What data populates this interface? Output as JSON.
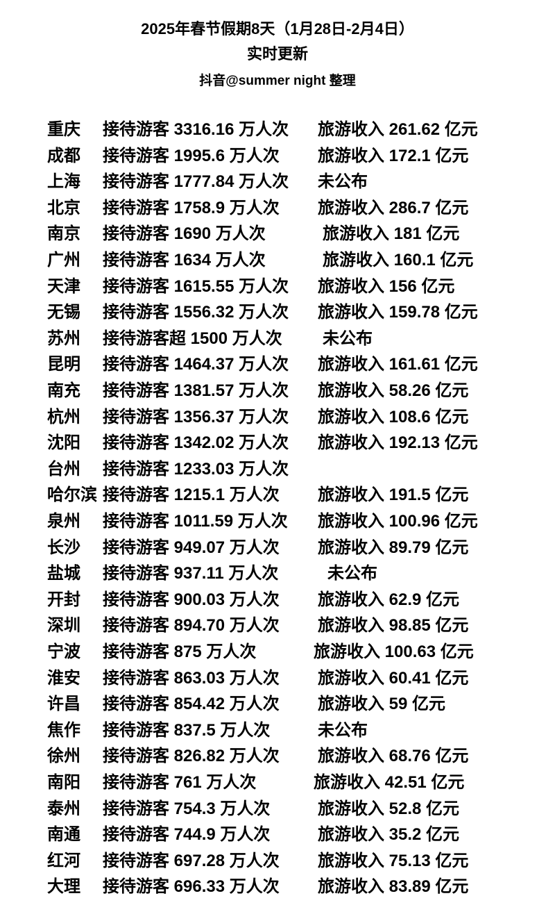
{
  "header": {
    "title": "2025年春节假期8天（1月28日-2月4日）",
    "subtitle": "实时更新",
    "credit": "抖音@summer  night 整理"
  },
  "rows": [
    {
      "city": "重庆",
      "visitors": "接待游客 3316.16 万人次",
      "revenue": "旅游收入 261.62 亿元"
    },
    {
      "city": "成都",
      "visitors": "接待游客 1995.6 万人次",
      "revenue": "旅游收入 172.1 亿元"
    },
    {
      "city": "上海",
      "visitors": "接待游客 1777.84 万人次",
      "revenue": "未公布"
    },
    {
      "city": "北京",
      "visitors": "接待游客 1758.9 万人次",
      "revenue": "旅游收入 286.7 亿元"
    },
    {
      "city": "南京",
      "visitors": "接待游客 1690 万人次",
      "revenue": "旅游收入 181 亿元"
    },
    {
      "city": "广州",
      "visitors": "接待游客 1634 万人次",
      "revenue": "旅游收入 160.1 亿元"
    },
    {
      "city": "天津",
      "visitors": "接待游客 1615.55 万人次",
      "revenue": "旅游收入 156 亿元"
    },
    {
      "city": "无锡",
      "visitors": "接待游客 1556.32 万人次",
      "revenue": "旅游收入 159.78 亿元"
    },
    {
      "city": "苏州",
      "visitors": "接待游客超 1500 万人次",
      "revenue": "未公布"
    },
    {
      "city": "昆明",
      "visitors": "接待游客 1464.37 万人次",
      "revenue": "旅游收入 161.61 亿元"
    },
    {
      "city": "南充",
      "visitors": "接待游客 1381.57 万人次",
      "revenue": "旅游收入 58.26 亿元"
    },
    {
      "city": "杭州",
      "visitors": "接待游客 1356.37 万人次",
      "revenue": "旅游收入 108.6 亿元"
    },
    {
      "city": "沈阳",
      "visitors": "接待游客 1342.02 万人次",
      "revenue": "旅游收入 192.13 亿元"
    },
    {
      "city": "台州",
      "visitors": "接待游客 1233.03 万人次",
      "revenue": ""
    },
    {
      "city": "哈尔滨",
      "visitors": "接待游客 1215.1 万人次",
      "revenue": "旅游收入 191.5 亿元"
    },
    {
      "city": "泉州",
      "visitors": "接待游客 1011.59 万人次",
      "revenue": "旅游收入 100.96 亿元"
    },
    {
      "city": "长沙",
      "visitors": "接待游客 949.07 万人次",
      "revenue": "旅游收入 89.79 亿元"
    },
    {
      "city": "盐城",
      "visitors": "接待游客 937.11 万人次",
      "revenue": "未公布"
    },
    {
      "city": "开封",
      "visitors": "接待游客 900.03 万人次",
      "revenue": "旅游收入 62.9 亿元"
    },
    {
      "city": "深圳",
      "visitors": "接待游客 894.70 万人次",
      "revenue": "旅游收入 98.85 亿元"
    },
    {
      "city": "宁波",
      "visitors": "接待游客 875 万人次",
      "revenue": "旅游收入 100.63 亿元"
    },
    {
      "city": "淮安",
      "visitors": "接待游客 863.03 万人次",
      "revenue": "旅游收入 60.41 亿元"
    },
    {
      "city": "许昌",
      "visitors": "接待游客 854.42 万人次",
      "revenue": "旅游收入 59 亿元"
    },
    {
      "city": "焦作",
      "visitors": "接待游客 837.5 万人次",
      "revenue": "未公布"
    },
    {
      "city": "徐州",
      "visitors": "接待游客 826.82 万人次",
      "revenue": "旅游收入 68.76 亿元"
    },
    {
      "city": "南阳",
      "visitors": "接待游客 761 万人次",
      "revenue": "旅游收入 42.51 亿元"
    },
    {
      "city": "泰州",
      "visitors": "接待游客 754.3 万人次",
      "revenue": "旅游收入 52.8 亿元"
    },
    {
      "city": "南通",
      "visitors": "接待游客 744.9 万人次",
      "revenue": "旅游收入 35.2 亿元"
    },
    {
      "city": "红河",
      "visitors": "接待游客 697.28 万人次",
      "revenue": "旅游收入 75.13 亿元"
    },
    {
      "city": "大理",
      "visitors": "接待游客 696.33 万人次",
      "revenue": "旅游收入 83.89 亿元"
    }
  ]
}
